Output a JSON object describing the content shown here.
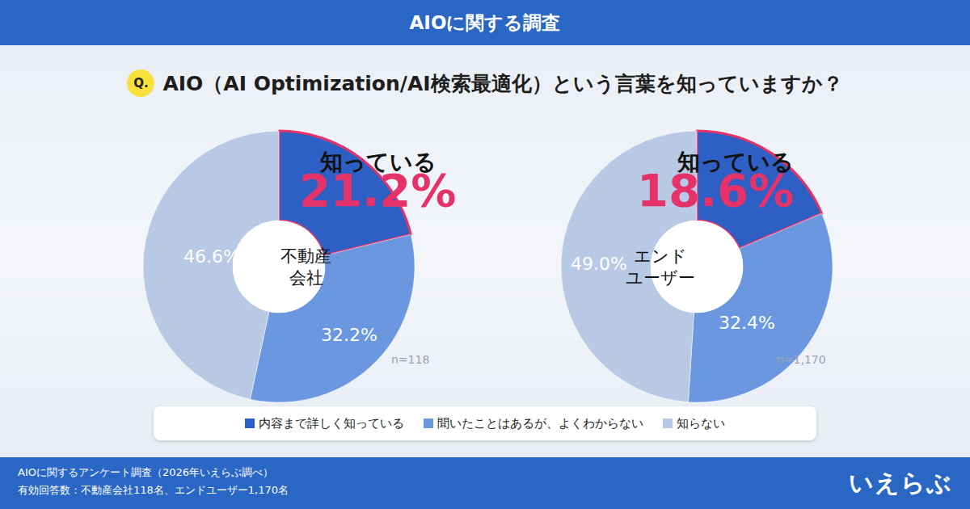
{
  "header": "AIOに関する調査",
  "question": {
    "badge": "Q.",
    "text": "AIO（AI Optimization/AI検索最適化）という言葉を知っていますか？"
  },
  "chart_data": [
    {
      "type": "pie",
      "title_lines": [
        "不動産",
        "会社"
      ],
      "categories": [
        "内容まで詳しく知っている",
        "聞いたことはあるが、よくわからない",
        "知らない"
      ],
      "values": [
        21.2,
        32.2,
        46.6
      ],
      "value_labels": [
        "21.2%",
        "32.2%",
        "46.6%"
      ],
      "colors": [
        "#2d5fc4",
        "#6a97e0",
        "#b7c9e4"
      ],
      "callout": "知っている",
      "sample_label": "n=118",
      "data_labels": true,
      "legend": "bottom"
    },
    {
      "type": "pie",
      "title_lines": [
        "エンド",
        "ユーザー"
      ],
      "categories": [
        "内容まで詳しく知っている",
        "聞いたことはあるが、よくわからない",
        "知らない"
      ],
      "values": [
        18.6,
        32.4,
        49.0
      ],
      "value_labels": [
        "18.6%",
        "32.4%",
        "49.0%"
      ],
      "colors": [
        "#2d5fc4",
        "#6a97e0",
        "#b7c9e4"
      ],
      "callout": "知っている",
      "sample_label": "n=1,170",
      "data_labels": true,
      "legend": "bottom"
    }
  ],
  "footer": {
    "lines": [
      "AIOに関するアンケート調査（2026年いえらぶ調べ）",
      "有効回答数：不動産会社118名、エンドユーザー1,170名"
    ],
    "logo": "いえらぶ"
  }
}
